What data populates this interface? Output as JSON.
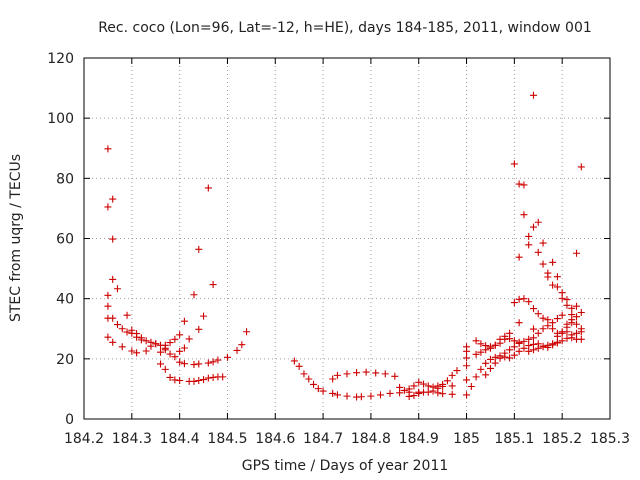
{
  "chart_data": {
    "type": "scatter",
    "title": "Rec. coco (Lon=96, Lat=-12, h=HE), days 184-185, 2011, window 001",
    "xlabel": "GPS time / Days of year 2011",
    "ylabel": "STEC from uqrg / TECUs",
    "xlim": [
      184.2,
      185.3
    ],
    "ylim": [
      0,
      120
    ],
    "xticks": [
      184.2,
      184.3,
      184.4,
      184.5,
      184.6,
      184.7,
      184.8,
      184.9,
      185,
      185.1,
      185.2,
      185.3
    ],
    "xtick_labels": [
      "184.2",
      "184.3",
      "184.4",
      "184.5",
      "184.6",
      "184.7",
      "184.8",
      "184.9",
      "185",
      "185.1",
      "185.2",
      "185.3"
    ],
    "yticks": [
      0,
      20,
      40,
      60,
      80,
      100,
      120
    ],
    "ytick_labels": [
      "0",
      "20",
      "40",
      "60",
      "80",
      "100",
      "120"
    ],
    "grid": true,
    "marker": "+",
    "color": "#cc0000",
    "points": [
      [
        184.25,
        89.8
      ],
      [
        184.25,
        70.5
      ],
      [
        184.26,
        73.1
      ],
      [
        184.26,
        59.8
      ],
      [
        184.26,
        46.4
      ],
      [
        184.27,
        43.3
      ],
      [
        184.25,
        41.1
      ],
      [
        184.25,
        37.5
      ],
      [
        184.25,
        33.5
      ],
      [
        184.26,
        33.5
      ],
      [
        184.27,
        31.4
      ],
      [
        184.28,
        30.0
      ],
      [
        184.29,
        34.5
      ],
      [
        184.29,
        28.9
      ],
      [
        184.3,
        28.5
      ],
      [
        184.31,
        28.4
      ],
      [
        184.32,
        27.0
      ],
      [
        184.33,
        26.0
      ],
      [
        184.34,
        25.5
      ],
      [
        184.35,
        25.0
      ],
      [
        184.36,
        24.5
      ],
      [
        184.37,
        24.5
      ],
      [
        184.25,
        27.2
      ],
      [
        184.26,
        25.5
      ],
      [
        184.28,
        24.0
      ],
      [
        184.3,
        22.6
      ],
      [
        184.31,
        22.0
      ],
      [
        184.33,
        22.6
      ],
      [
        184.35,
        25.0
      ],
      [
        184.37,
        23.5
      ],
      [
        184.38,
        21.6
      ],
      [
        184.39,
        20.7
      ],
      [
        184.4,
        18.9
      ],
      [
        184.41,
        18.4
      ],
      [
        184.43,
        18.1
      ],
      [
        184.44,
        18.3
      ],
      [
        184.46,
        18.6
      ],
      [
        184.47,
        19.0
      ],
      [
        184.48,
        19.6
      ],
      [
        184.5,
        20.5
      ],
      [
        184.52,
        22.8
      ],
      [
        184.53,
        24.7
      ],
      [
        184.54,
        29.0
      ],
      [
        184.3,
        29.5
      ],
      [
        184.31,
        27.2
      ],
      [
        184.32,
        26.3
      ],
      [
        184.34,
        24.2
      ],
      [
        184.36,
        18.3
      ],
      [
        184.37,
        16.5
      ],
      [
        184.38,
        13.8
      ],
      [
        184.39,
        13.0
      ],
      [
        184.4,
        12.8
      ],
      [
        184.42,
        12.5
      ],
      [
        184.43,
        12.5
      ],
      [
        184.44,
        12.8
      ],
      [
        184.45,
        13.1
      ],
      [
        184.46,
        13.6
      ],
      [
        184.47,
        13.8
      ],
      [
        184.48,
        14.0
      ],
      [
        184.49,
        14.0
      ],
      [
        184.36,
        22.2
      ],
      [
        184.37,
        23.0
      ],
      [
        184.38,
        25.4
      ],
      [
        184.39,
        26.5
      ],
      [
        184.4,
        28.0
      ],
      [
        184.41,
        32.5
      ],
      [
        184.43,
        41.3
      ],
      [
        184.44,
        56.4
      ],
      [
        184.46,
        76.8
      ],
      [
        184.47,
        44.7
      ],
      [
        184.45,
        34.2
      ],
      [
        184.44,
        29.8
      ],
      [
        184.42,
        26.6
      ],
      [
        184.41,
        23.6
      ],
      [
        184.4,
        22.5
      ],
      [
        184.64,
        19.3
      ],
      [
        184.65,
        17.5
      ],
      [
        184.66,
        15.0
      ],
      [
        184.67,
        13.3
      ],
      [
        184.68,
        11.5
      ],
      [
        184.69,
        10.1
      ],
      [
        184.7,
        9.3
      ],
      [
        184.72,
        8.5
      ],
      [
        184.73,
        8.0
      ],
      [
        184.75,
        7.6
      ],
      [
        184.77,
        7.3
      ],
      [
        184.78,
        7.4
      ],
      [
        184.8,
        7.6
      ],
      [
        184.82,
        8.0
      ],
      [
        184.84,
        8.5
      ],
      [
        184.86,
        8.7
      ],
      [
        184.88,
        8.9
      ],
      [
        184.9,
        8.9
      ],
      [
        184.92,
        8.9
      ],
      [
        184.94,
        8.7
      ],
      [
        184.95,
        8.4
      ],
      [
        184.97,
        8.2
      ],
      [
        184.72,
        13.3
      ],
      [
        184.73,
        14.5
      ],
      [
        184.75,
        15.0
      ],
      [
        184.77,
        15.4
      ],
      [
        184.79,
        15.6
      ],
      [
        184.81,
        15.3
      ],
      [
        184.83,
        15.0
      ],
      [
        184.85,
        14.2
      ],
      [
        184.86,
        10.5
      ],
      [
        184.87,
        9.5
      ],
      [
        184.88,
        10.0
      ],
      [
        184.89,
        11.0
      ],
      [
        184.9,
        12.2
      ],
      [
        184.91,
        11.6
      ],
      [
        184.92,
        11.0
      ],
      [
        184.93,
        10.6
      ],
      [
        184.94,
        10.2
      ],
      [
        184.95,
        10.8
      ],
      [
        184.96,
        12.7
      ],
      [
        184.97,
        14.5
      ],
      [
        184.88,
        7.5
      ],
      [
        184.89,
        7.8
      ],
      [
        184.9,
        8.5
      ],
      [
        184.91,
        8.9
      ],
      [
        184.93,
        9.3
      ],
      [
        184.94,
        11.0
      ],
      [
        184.95,
        11.5
      ],
      [
        184.97,
        11.0
      ],
      [
        184.98,
        16.1
      ],
      [
        185.0,
        8.0
      ],
      [
        185.0,
        13.0
      ],
      [
        185.0,
        17.7
      ],
      [
        185.0,
        20.3
      ],
      [
        185.0,
        22.5
      ],
      [
        185.0,
        24.0
      ],
      [
        185.02,
        26.0
      ],
      [
        185.03,
        25.0
      ],
      [
        185.04,
        24.4
      ],
      [
        185.05,
        24.0
      ],
      [
        185.06,
        24.5
      ],
      [
        185.07,
        25.2
      ],
      [
        185.08,
        26.5
      ],
      [
        185.09,
        26.7
      ],
      [
        185.1,
        26.0
      ],
      [
        185.11,
        25.5
      ],
      [
        185.01,
        10.8
      ],
      [
        185.02,
        14.0
      ],
      [
        185.03,
        16.5
      ],
      [
        185.04,
        18.5
      ],
      [
        185.05,
        19.8
      ],
      [
        185.06,
        20.5
      ],
      [
        185.07,
        21.0
      ],
      [
        185.08,
        20.6
      ],
      [
        185.09,
        20.3
      ],
      [
        185.1,
        21.2
      ],
      [
        185.11,
        22.5
      ],
      [
        185.12,
        23.5
      ],
      [
        185.13,
        24.4
      ],
      [
        185.14,
        24.8
      ],
      [
        185.15,
        25.0
      ],
      [
        185.16,
        24.2
      ],
      [
        185.17,
        23.8
      ],
      [
        185.18,
        24.6
      ],
      [
        185.19,
        25.3
      ],
      [
        185.02,
        21.5
      ],
      [
        185.03,
        22.2
      ],
      [
        185.04,
        23.0
      ],
      [
        185.05,
        23.5
      ],
      [
        185.06,
        24.5
      ],
      [
        185.07,
        26.5
      ],
      [
        185.08,
        27.5
      ],
      [
        185.09,
        28.5
      ],
      [
        185.1,
        38.7
      ],
      [
        185.1,
        84.8
      ],
      [
        185.11,
        39.8
      ],
      [
        185.11,
        78.1
      ],
      [
        185.12,
        77.8
      ],
      [
        185.12,
        67.9
      ],
      [
        185.13,
        60.7
      ],
      [
        185.13,
        57.9
      ],
      [
        185.14,
        107.6
      ],
      [
        185.14,
        63.8
      ],
      [
        185.15,
        65.4
      ],
      [
        185.15,
        55.4
      ],
      [
        185.16,
        51.5
      ],
      [
        185.16,
        58.5
      ],
      [
        185.17,
        47.2
      ],
      [
        185.17,
        48.5
      ],
      [
        185.18,
        44.5
      ],
      [
        185.18,
        52.1
      ],
      [
        185.19,
        47.3
      ],
      [
        185.19,
        43.9
      ],
      [
        185.2,
        42.0
      ],
      [
        185.2,
        40.1
      ],
      [
        185.21,
        39.7
      ],
      [
        185.21,
        37.8
      ],
      [
        185.22,
        36.8
      ],
      [
        185.22,
        34.7
      ],
      [
        185.23,
        55.1
      ],
      [
        185.23,
        37.5
      ],
      [
        185.24,
        83.8
      ],
      [
        185.24,
        35.4
      ],
      [
        185.04,
        14.7
      ],
      [
        185.05,
        16.8
      ],
      [
        185.06,
        18.6
      ],
      [
        185.07,
        20.2
      ],
      [
        185.08,
        21.9
      ],
      [
        185.09,
        23.0
      ],
      [
        185.1,
        24.0
      ],
      [
        185.11,
        25.1
      ],
      [
        185.12,
        25.8
      ],
      [
        185.13,
        26.5
      ],
      [
        185.14,
        27.0
      ],
      [
        185.15,
        28.5
      ],
      [
        185.16,
        30.0
      ],
      [
        185.17,
        31.0
      ],
      [
        185.18,
        32.0
      ],
      [
        185.19,
        33.4
      ],
      [
        185.2,
        34.5
      ],
      [
        185.11,
        32.0
      ],
      [
        185.11,
        53.8
      ],
      [
        185.12,
        40.0
      ],
      [
        185.13,
        39.0
      ],
      [
        185.14,
        36.7
      ],
      [
        185.14,
        29.9
      ],
      [
        185.15,
        35.0
      ],
      [
        185.16,
        33.5
      ],
      [
        185.17,
        33.0
      ],
      [
        185.18,
        30.0
      ],
      [
        185.19,
        28.5
      ],
      [
        185.2,
        29.0
      ],
      [
        185.21,
        30.5
      ],
      [
        185.22,
        32.0
      ],
      [
        185.23,
        31.5
      ],
      [
        185.24,
        30.0
      ],
      [
        185.24,
        29.0
      ],
      [
        185.13,
        22.5
      ],
      [
        185.14,
        23.0
      ],
      [
        185.15,
        23.5
      ],
      [
        185.16,
        24.0
      ],
      [
        185.17,
        24.5
      ],
      [
        185.18,
        25.0
      ],
      [
        185.19,
        25.5
      ],
      [
        185.2,
        26.0
      ],
      [
        185.21,
        26.8
      ],
      [
        185.22,
        27.0
      ],
      [
        185.23,
        26.5
      ],
      [
        185.24,
        26.5
      ],
      [
        185.19,
        27.5
      ],
      [
        185.2,
        28.5
      ],
      [
        185.21,
        29.0
      ],
      [
        185.22,
        28.0
      ],
      [
        185.23,
        28.5
      ],
      [
        185.21,
        31.5
      ],
      [
        185.22,
        33.0
      ],
      [
        185.23,
        34.0
      ]
    ]
  }
}
